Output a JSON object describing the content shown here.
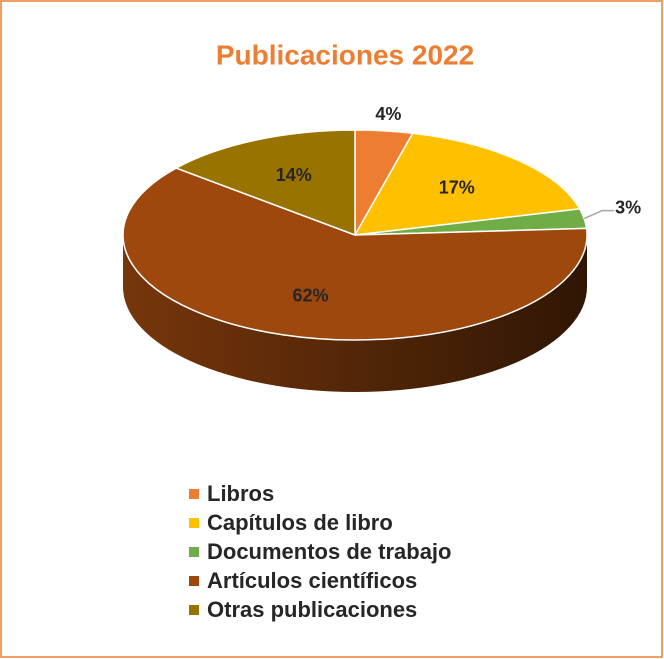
{
  "chart_data": {
    "type": "pie",
    "title": "Publicaciones 2022",
    "categories": [
      "Libros",
      "Capítulos de libro",
      "Documentos de trabajo",
      "Artículos científicos",
      "Otras publicaciones"
    ],
    "values": [
      4,
      17,
      3,
      62,
      14
    ],
    "value_labels": [
      "4%",
      "17%",
      "3%",
      "62%",
      "14%"
    ],
    "colors": [
      "#ED7D31",
      "#FFC000",
      "#70AD47",
      "#9E480E",
      "#997300"
    ],
    "legend": "bottom"
  }
}
